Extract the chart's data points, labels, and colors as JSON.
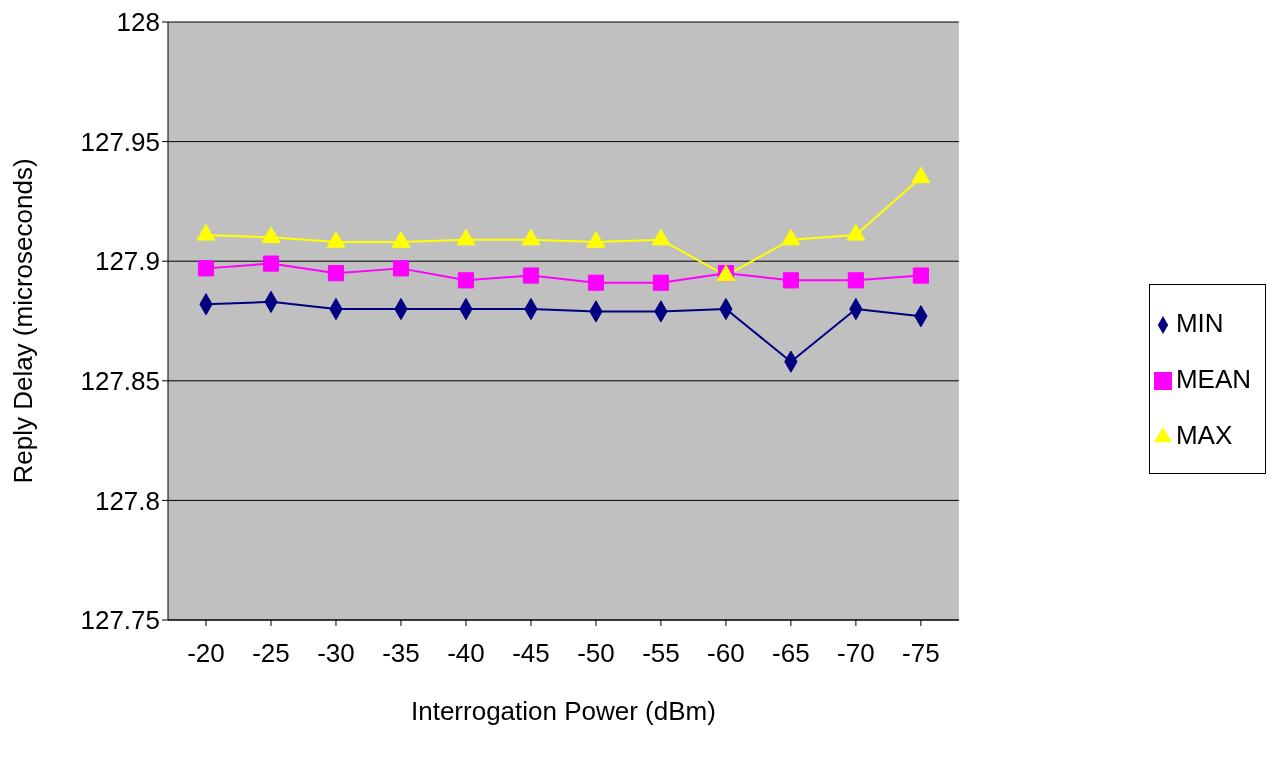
{
  "chart_data": {
    "type": "line",
    "xlabel": "Interrogation Power (dBm)",
    "ylabel": "Reply Delay  (microseconds)",
    "categories": [
      "-20",
      "-25",
      "-30",
      "-35",
      "-40",
      "-45",
      "-50",
      "-55",
      "-60",
      "-65",
      "-70",
      "-75"
    ],
    "series": [
      {
        "name": "MIN",
        "color": "#000080",
        "marker": "diamond",
        "values": [
          127.882,
          127.883,
          127.88,
          127.88,
          127.88,
          127.88,
          127.879,
          127.879,
          127.88,
          127.858,
          127.88,
          127.877
        ]
      },
      {
        "name": "MEAN",
        "color": "#ff00ff",
        "marker": "square",
        "values": [
          127.897,
          127.899,
          127.895,
          127.897,
          127.892,
          127.894,
          127.891,
          127.891,
          127.895,
          127.892,
          127.892,
          127.894
        ]
      },
      {
        "name": "MAX",
        "color": "#ffff00",
        "marker": "triangle",
        "values": [
          127.911,
          127.91,
          127.908,
          127.908,
          127.909,
          127.909,
          127.908,
          127.909,
          127.894,
          127.909,
          127.911,
          127.935
        ]
      }
    ],
    "ylim": [
      127.75,
      128
    ],
    "yticks": [
      127.75,
      127.8,
      127.85,
      127.9,
      127.95,
      128
    ],
    "grid": "y",
    "legend": "right"
  }
}
